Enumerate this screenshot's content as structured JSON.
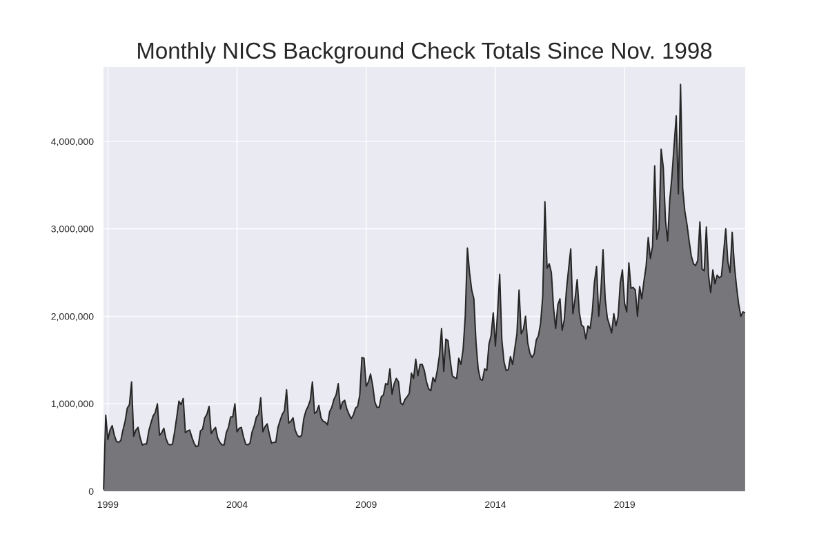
{
  "chart_data": {
    "type": "area",
    "title": "Monthly NICS Background Check Totals Since Nov. 1998",
    "xlabel": "",
    "ylabel": "",
    "x_start": "1998-11",
    "x_range": [
      1998.83,
      2023.67
    ],
    "ylim": [
      0,
      4850000
    ],
    "x_ticks": [
      {
        "value": 1999,
        "label": "1999"
      },
      {
        "value": 2004,
        "label": "2004"
      },
      {
        "value": 2009,
        "label": "2009"
      },
      {
        "value": 2014,
        "label": "2014"
      },
      {
        "value": 2019,
        "label": "2019"
      }
    ],
    "y_ticks": [
      {
        "value": 0,
        "label": "0"
      },
      {
        "value": 1000000,
        "label": "1,000,000"
      },
      {
        "value": 2000000,
        "label": "2,000,000"
      },
      {
        "value": 3000000,
        "label": "3,000,000"
      },
      {
        "value": 4000000,
        "label": "4,000,000"
      }
    ],
    "grid": true,
    "colors": {
      "plot_bg": "#eaeaf2",
      "grid": "#ffffff",
      "fill": "#6d6b70",
      "line": "#262626",
      "text": "#262626"
    },
    "series": [
      {
        "name": "Monthly NICS background checks",
        "monthly_values": [
          20000,
          870000,
          590000,
          700000,
          750000,
          640000,
          570000,
          560000,
          580000,
          700000,
          800000,
          950000,
          990000,
          1250000,
          630000,
          700000,
          730000,
          610000,
          530000,
          540000,
          540000,
          690000,
          780000,
          860000,
          900000,
          1000000,
          640000,
          670000,
          720000,
          600000,
          540000,
          530000,
          540000,
          680000,
          850000,
          1030000,
          990000,
          1060000,
          670000,
          690000,
          700000,
          620000,
          550000,
          510000,
          520000,
          690000,
          710000,
          840000,
          880000,
          970000,
          660000,
          700000,
          730000,
          610000,
          560000,
          530000,
          530000,
          670000,
          730000,
          850000,
          850000,
          1000000,
          680000,
          720000,
          730000,
          620000,
          540000,
          530000,
          550000,
          680000,
          750000,
          850000,
          880000,
          1070000,
          680000,
          740000,
          770000,
          650000,
          550000,
          560000,
          560000,
          730000,
          810000,
          880000,
          920000,
          1160000,
          780000,
          800000,
          840000,
          700000,
          640000,
          620000,
          640000,
          830000,
          920000,
          970000,
          1040000,
          1250000,
          890000,
          910000,
          980000,
          840000,
          800000,
          790000,
          760000,
          910000,
          960000,
          1050000,
          1100000,
          1230000,
          940000,
          1020000,
          1040000,
          940000,
          880000,
          830000,
          870000,
          950000,
          970000,
          1100000,
          1530000,
          1520000,
          1200000,
          1250000,
          1340000,
          1210000,
          1020000,
          960000,
          960000,
          1080000,
          1100000,
          1230000,
          1220000,
          1400000,
          1110000,
          1230000,
          1290000,
          1250000,
          1010000,
          990000,
          1050000,
          1080000,
          1120000,
          1350000,
          1290000,
          1510000,
          1320000,
          1450000,
          1450000,
          1380000,
          1250000,
          1170000,
          1150000,
          1300000,
          1250000,
          1380000,
          1550000,
          1860000,
          1370000,
          1740000,
          1720000,
          1500000,
          1320000,
          1300000,
          1290000,
          1520000,
          1450000,
          1620000,
          2000000,
          2780000,
          2500000,
          2300000,
          2200000,
          1700000,
          1400000,
          1280000,
          1270000,
          1400000,
          1380000,
          1680000,
          1780000,
          2040000,
          1660000,
          2040000,
          2480000,
          1730000,
          1480000,
          1380000,
          1390000,
          1540000,
          1450000,
          1630000,
          1800000,
          2300000,
          1800000,
          1850000,
          2000000,
          1700000,
          1580000,
          1530000,
          1570000,
          1730000,
          1780000,
          1920000,
          2230000,
          3310000,
          2550000,
          2600000,
          2500000,
          2100000,
          1860000,
          2130000,
          2200000,
          1840000,
          1960000,
          2300000,
          2540000,
          2770000,
          2030000,
          2200000,
          2420000,
          2040000,
          1900000,
          1880000,
          1740000,
          1890000,
          1860000,
          2050000,
          2390000,
          2570000,
          2000000,
          2280000,
          2760000,
          2200000,
          1980000,
          1900000,
          1810000,
          2030000,
          1890000,
          2000000,
          2380000,
          2530000,
          2150000,
          2050000,
          2610000,
          2320000,
          2330000,
          2300000,
          2000000,
          2340000,
          2200000,
          2400000,
          2570000,
          2900000,
          2660000,
          2800000,
          3720000,
          2880000,
          3000000,
          3910000,
          3700000,
          3100000,
          2860000,
          3330000,
          3600000,
          3950000,
          4290000,
          3400000,
          4650000,
          3460000,
          3200000,
          3050000,
          2860000,
          2690000,
          2600000,
          2580000,
          2640000,
          3080000,
          2540000,
          2520000,
          3020000,
          2470000,
          2270000,
          2530000,
          2370000,
          2470000,
          2440000,
          2460000,
          2720000,
          3000000,
          2620000,
          2500000,
          2960000,
          2590000,
          2340000,
          2140000,
          2000000,
          2050000,
          2040000
        ]
      }
    ]
  }
}
